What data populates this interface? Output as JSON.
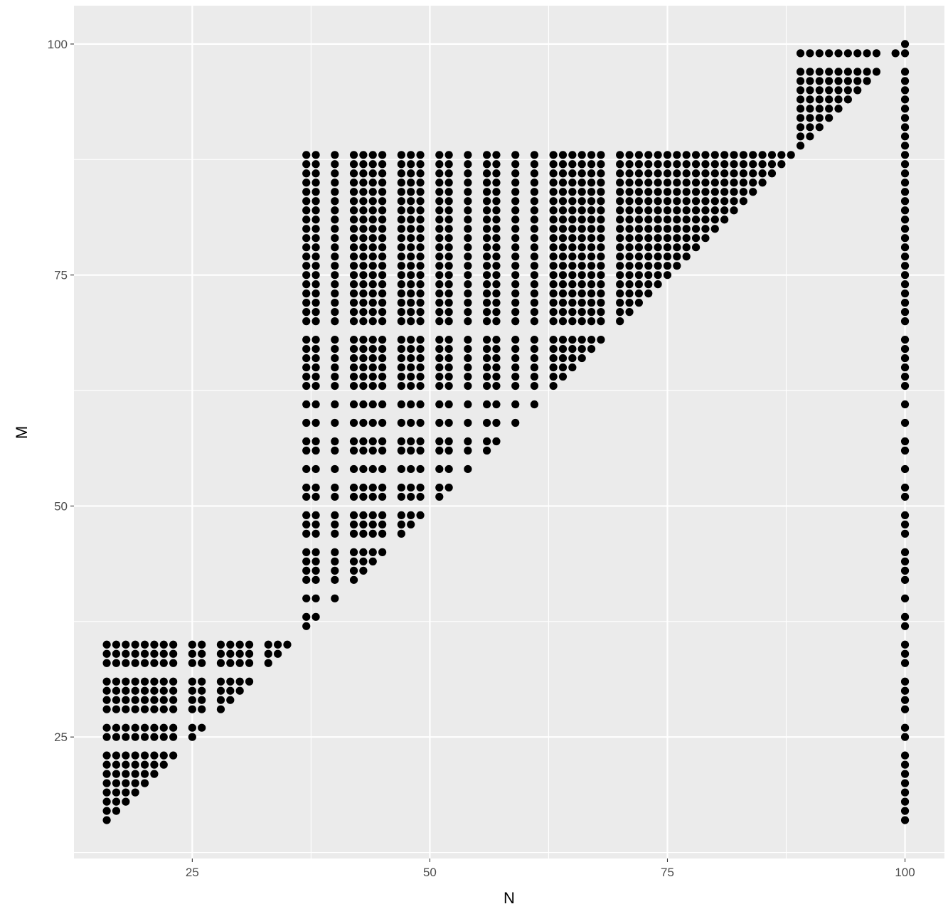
{
  "chart_data": {
    "type": "scatter",
    "title": "",
    "xlabel": "N",
    "ylabel": "M",
    "xlim": [
      12.55,
      104.15
    ],
    "ylim": [
      11.85,
      104.15
    ],
    "x_ticks": [
      25,
      50,
      75,
      100
    ],
    "y_ticks": [
      25,
      50,
      75,
      100
    ],
    "x_tick_labels": [
      "25",
      "50",
      "75",
      "100"
    ],
    "y_tick_labels": [
      "25",
      "50",
      "75",
      "100"
    ],
    "grid": true,
    "legend": "none",
    "colors": {
      "panel": "#ebebeb",
      "grid": "#ffffff",
      "points": "#000000",
      "tick_text": "#4d4d4d"
    },
    "regions": [
      {
        "name": "block-A",
        "n_values": [
          16,
          17,
          18,
          19,
          20,
          21,
          22,
          23,
          25,
          26,
          28,
          29,
          30,
          31,
          33,
          34,
          35
        ],
        "m_values": [
          16,
          17,
          18,
          19,
          20,
          21,
          22,
          23,
          25,
          26,
          28,
          29,
          30,
          31,
          33,
          34,
          35
        ],
        "rule": "M >= N"
      },
      {
        "name": "block-B",
        "n_values": [
          37,
          38,
          40,
          42,
          43,
          44,
          45,
          47,
          48,
          49,
          51,
          52,
          54,
          56,
          57,
          59,
          61,
          63,
          64,
          65,
          66,
          67,
          68
        ],
        "m_values": [
          37,
          38,
          40,
          42,
          43,
          44,
          45,
          47,
          48,
          49,
          51,
          52,
          54,
          56,
          57,
          59,
          61,
          63,
          64,
          65,
          66,
          67,
          68,
          70,
          71,
          72,
          73,
          74,
          75,
          76,
          77,
          78,
          79,
          80,
          81,
          82,
          83,
          84,
          85,
          86,
          87,
          88
        ],
        "rule": "M >= N"
      },
      {
        "name": "block-C",
        "n_values": [
          70,
          71,
          72,
          73,
          74,
          75,
          76,
          77,
          78,
          79,
          80,
          81,
          82,
          83,
          84,
          85,
          86,
          87,
          88
        ],
        "m_values": [
          70,
          71,
          72,
          73,
          74,
          75,
          76,
          77,
          78,
          79,
          80,
          81,
          82,
          83,
          84,
          85,
          86,
          87,
          88
        ],
        "rule": "M >= N"
      },
      {
        "name": "block-D",
        "n_values": [
          89,
          90,
          91,
          92,
          93,
          94,
          95,
          96,
          97
        ],
        "m_values": [
          89,
          90,
          91,
          92,
          93,
          94,
          95,
          96,
          97,
          99
        ],
        "rule": "M >= N"
      },
      {
        "name": "column-N100",
        "n_values": [
          100
        ],
        "m_values": [
          16,
          17,
          18,
          19,
          20,
          21,
          22,
          23,
          25,
          26,
          28,
          29,
          30,
          31,
          33,
          34,
          35,
          37,
          38,
          40,
          42,
          43,
          44,
          45,
          47,
          48,
          49,
          51,
          52,
          54,
          56,
          57,
          59,
          61,
          63,
          64,
          65,
          66,
          67,
          68,
          70,
          71,
          72,
          73,
          74,
          75,
          76,
          77,
          78,
          79,
          80,
          81,
          82,
          83,
          84,
          85,
          86,
          87,
          88,
          89,
          90,
          91,
          92,
          93,
          94,
          95,
          96,
          97,
          99,
          100
        ],
        "rule": "all"
      }
    ],
    "extra_points": [
      [
        99,
        99
      ]
    ]
  }
}
